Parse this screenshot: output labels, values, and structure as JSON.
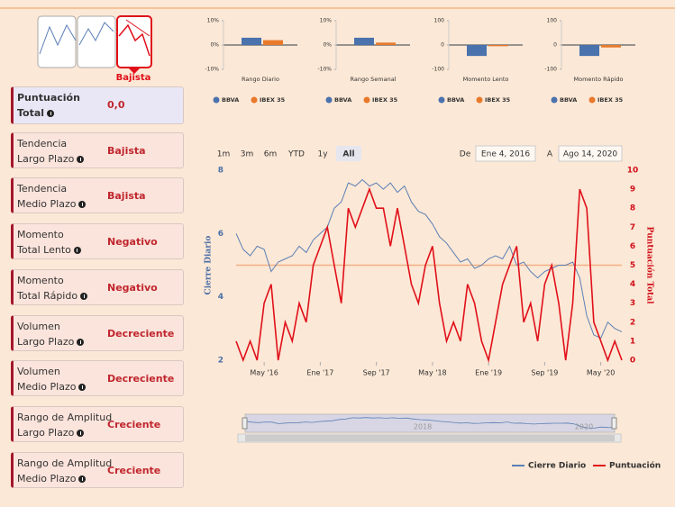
{
  "status": "Bajista",
  "sidebar": [
    {
      "label": [
        "Puntuación",
        "Total"
      ],
      "value": "0,0"
    },
    {
      "label": [
        "Tendencia",
        "Largo Plazo"
      ],
      "value": "Bajista"
    },
    {
      "label": [
        "Tendencia",
        "Medio Plazo"
      ],
      "value": "Bajista"
    },
    {
      "label": [
        "Momento",
        "Total Lento"
      ],
      "value": "Negativo"
    },
    {
      "label": [
        "Momento",
        "Total Rápido"
      ],
      "value": "Negativo"
    },
    {
      "label": [
        "Volumen",
        "Largo Plazo"
      ],
      "value": "Decreciente"
    },
    {
      "label": [
        "Volumen",
        "Medio Plazo"
      ],
      "value": "Decreciente"
    },
    {
      "label": [
        "Rango de Amplitud",
        "Largo Plazo"
      ],
      "value": "Creciente"
    },
    {
      "label": [
        "Rango de Amplitud",
        "Medio Plazo"
      ],
      "value": "Creciente"
    }
  ],
  "range_selector": {
    "buttons": [
      "1m",
      "3m",
      "6m",
      "YTD",
      "1y",
      "All"
    ],
    "selected": 5
  },
  "date_range": {
    "from_label": "De",
    "from": "Ene 4, 2016",
    "to_label": "A",
    "to": "Ago 14, 2020"
  },
  "navigator": {
    "labels": [
      "2018",
      "2020"
    ]
  },
  "chart_data": [
    {
      "type": "bar",
      "title": "Rango Diario",
      "ylim": [
        -10,
        10
      ],
      "yticks": [
        {
          "value": 10,
          "label": "10%"
        },
        {
          "value": 0,
          "label": "0%"
        },
        {
          "value": -10,
          "label": "-10%"
        }
      ],
      "series": [
        {
          "name": "BBVA",
          "color": "#4a72ad",
          "values": [
            3
          ]
        },
        {
          "name": "IBEX 35",
          "color": "#e8792b",
          "values": [
            2
          ]
        }
      ]
    },
    {
      "type": "bar",
      "title": "Rango Semanal",
      "ylim": [
        -10,
        10
      ],
      "yticks": [
        {
          "value": 10,
          "label": "10%"
        },
        {
          "value": 0,
          "label": "0%"
        },
        {
          "value": -10,
          "label": "-10%"
        }
      ],
      "series": [
        {
          "name": "BBVA",
          "color": "#4a72ad",
          "values": [
            3
          ]
        },
        {
          "name": "IBEX 35",
          "color": "#e8792b",
          "values": [
            1
          ]
        }
      ]
    },
    {
      "type": "bar",
      "title": "Momento Lento",
      "ylim": [
        -100,
        100
      ],
      "yticks": [
        100,
        0,
        -100
      ],
      "series": [
        {
          "name": "BBVA",
          "color": "#4a72ad",
          "values": [
            -45
          ]
        },
        {
          "name": "IBEX 35",
          "color": "#e8792b",
          "values": [
            -5
          ]
        }
      ]
    },
    {
      "type": "bar",
      "title": "Momento Rápido",
      "ylim": [
        -100,
        100
      ],
      "yticks": [
        100,
        0,
        -100
      ],
      "series": [
        {
          "name": "BBVA",
          "color": "#4a72ad",
          "values": [
            -45
          ]
        },
        {
          "name": "IBEX 35",
          "color": "#e8792b",
          "values": [
            -10
          ]
        }
      ]
    },
    {
      "type": "line",
      "x": [
        "2016-01",
        "2016-02",
        "2016-03",
        "2016-04",
        "2016-05",
        "2016-06",
        "2016-07",
        "2016-08",
        "2016-09",
        "2016-10",
        "2016-11",
        "2016-12",
        "2017-01",
        "2017-02",
        "2017-03",
        "2017-04",
        "2017-05",
        "2017-06",
        "2017-07",
        "2017-08",
        "2017-09",
        "2017-10",
        "2017-11",
        "2017-12",
        "2018-01",
        "2018-02",
        "2018-03",
        "2018-04",
        "2018-05",
        "2018-06",
        "2018-07",
        "2018-08",
        "2018-09",
        "2018-10",
        "2018-11",
        "2018-12",
        "2019-01",
        "2019-02",
        "2019-03",
        "2019-04",
        "2019-05",
        "2019-06",
        "2019-07",
        "2019-08",
        "2019-09",
        "2019-10",
        "2019-11",
        "2019-12",
        "2020-01",
        "2020-02",
        "2020-03",
        "2020-04",
        "2020-05",
        "2020-06",
        "2020-07",
        "2020-08"
      ],
      "xlim": [
        "2016-01",
        "2020-08"
      ],
      "xticks": [
        {
          "value": "2016-05",
          "label": "May '16"
        },
        {
          "value": "2017-01",
          "label": "Ene '17"
        },
        {
          "value": "2017-09",
          "label": "Sep '17"
        },
        {
          "value": "2018-05",
          "label": "May '18"
        },
        {
          "value": "2019-01",
          "label": "Ene '19"
        },
        {
          "value": "2019-09",
          "label": "Sep '19"
        },
        {
          "value": "2020-05",
          "label": "May '20"
        }
      ],
      "ylim": [
        2,
        8
      ],
      "yticks": [
        2,
        4,
        6,
        8
      ],
      "ylabel": "Cierre Diario",
      "y2lim": [
        0,
        10
      ],
      "y2ticks": [
        0,
        1,
        2,
        3,
        4,
        5,
        6,
        7,
        8,
        9,
        10
      ],
      "y2label": "Puntuación Total",
      "reference_line": {
        "value": 5,
        "axis": "y2",
        "color": "#f2b183"
      },
      "series": [
        {
          "name": "Cierre Diario",
          "color": "#5b7fb5",
          "values": [
            6.0,
            5.5,
            5.3,
            5.6,
            5.5,
            4.8,
            5.1,
            5.2,
            5.3,
            5.6,
            5.4,
            5.8,
            6.0,
            6.2,
            6.8,
            7.0,
            7.6,
            7.5,
            7.7,
            7.5,
            7.6,
            7.4,
            7.6,
            7.3,
            7.5,
            7.0,
            6.7,
            6.6,
            6.3,
            5.9,
            5.7,
            5.4,
            5.1,
            5.2,
            4.9,
            5.0,
            5.2,
            5.3,
            5.2,
            5.6,
            5.0,
            5.1,
            4.8,
            4.6,
            4.8,
            4.9,
            5.0,
            5.0,
            5.1,
            4.6,
            3.4,
            2.8,
            2.7,
            3.2,
            3.0,
            2.9
          ]
        },
        {
          "name": "Puntuación",
          "color": "#e0101a",
          "axis": "y2",
          "values": [
            1,
            0,
            1,
            0,
            3,
            4,
            0,
            2,
            1,
            3,
            2,
            5,
            6,
            7,
            5,
            3,
            8,
            7,
            8,
            9,
            8,
            8,
            6,
            8,
            6,
            4,
            3,
            5,
            6,
            3,
            1,
            2,
            1,
            4,
            3,
            1,
            0,
            2,
            4,
            5,
            6,
            2,
            3,
            1,
            4,
            5,
            3,
            0,
            3,
            9,
            8,
            2,
            1,
            0,
            1,
            0
          ]
        }
      ]
    }
  ]
}
